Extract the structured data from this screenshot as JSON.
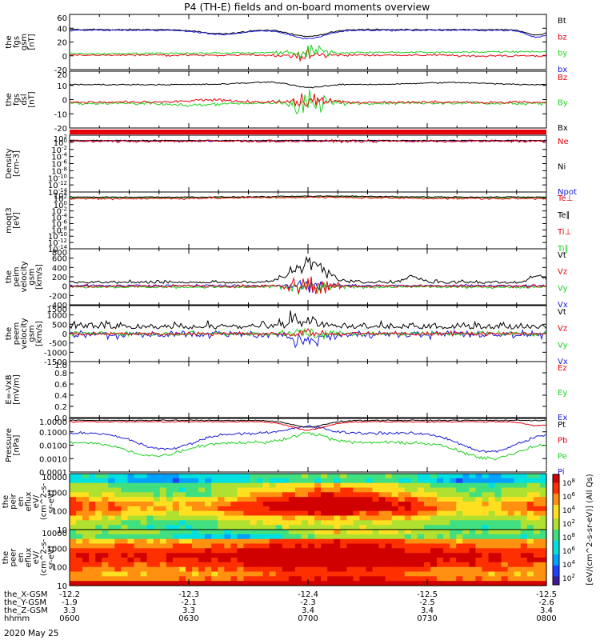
{
  "title": "P4 (TH-E) fields and on-board moments overview",
  "date_label": "2020 May 25",
  "colors": {
    "black": "#000000",
    "red": "#e8000b",
    "green": "#1ed21e",
    "blue": "#1a1ad8"
  },
  "chart_data": [
    {
      "type": "line",
      "panel": "fgs_gsm",
      "ylabel": [
        "the",
        "fgs",
        "gsm",
        "[nT]"
      ],
      "ylim": [
        -20,
        60
      ],
      "yticks": [
        "60",
        "40",
        "20",
        "0",
        "-20"
      ],
      "series": [
        {
          "name": "Bt",
          "color": "black",
          "level": 37
        },
        {
          "name": "bz",
          "color": "red",
          "level": 2
        },
        {
          "name": "by",
          "color": "green",
          "level": 5
        },
        {
          "name": "bx",
          "color": "blue",
          "level": 35
        }
      ]
    },
    {
      "type": "line",
      "panel": "fgs_dsl",
      "ylabel": [
        "the",
        "fgs",
        "dsl",
        "[nT]"
      ],
      "ylim": [
        -25,
        30
      ],
      "yticks": [
        "20",
        "10",
        "0",
        "-10",
        "-20"
      ],
      "series": [
        {
          "name": "Bz",
          "color": "red",
          "level": 0
        },
        {
          "name": "By",
          "color": "green",
          "level": -1
        },
        {
          "name": "Bx",
          "color": "black",
          "level": 17
        }
      ]
    },
    {
      "type": "line",
      "panel": "density",
      "ylabel": [
        "Density",
        "[cm-3]"
      ],
      "ylim": [
        -14,
        2
      ],
      "log": true,
      "yticks": [
        "10^2",
        "10^0",
        "10^-2",
        "10^-4",
        "10^-6",
        "10^-8",
        "10^-10",
        "10^-12",
        "10^-14"
      ],
      "series": [
        {
          "name": "Ne",
          "color": "red",
          "level": 0
        },
        {
          "name": "Ni",
          "color": "black",
          "level": 0
        },
        {
          "name": "Npot",
          "color": "blue",
          "level": 0
        }
      ]
    },
    {
      "type": "line",
      "panel": "temperature",
      "ylabel": [
        "moqt3",
        "[eV]"
      ],
      "ylim": [
        -14,
        4
      ],
      "log": true,
      "yticks": [
        "10^4",
        "10^2",
        "10^0",
        "10^-2",
        "10^-4",
        "10^-6",
        "10^-8",
        "10^-10",
        "10^-12",
        "10^-14"
      ],
      "series": [
        {
          "name": "Te⊥",
          "color": "red",
          "level": 2
        },
        {
          "name": "Te∥",
          "color": "black",
          "level": 2
        },
        {
          "name": "Ti⊥",
          "color": "red",
          "level": 2
        },
        {
          "name": "Ti∥",
          "color": "green",
          "level": 2
        }
      ]
    },
    {
      "type": "line",
      "panel": "peim_velocity",
      "ylabel": [
        "the",
        "peim",
        "velocity",
        "gsm",
        "[km/s]"
      ],
      "ylim": [
        -400,
        800
      ],
      "yticks": [
        "800",
        "600",
        "400",
        "200",
        "0",
        "-200",
        "-400"
      ],
      "series": [
        {
          "name": "Vt",
          "color": "black",
          "level": 60
        },
        {
          "name": "Vz",
          "color": "red",
          "level": 0
        },
        {
          "name": "Vy",
          "color": "green",
          "level": -20
        },
        {
          "name": "Vx",
          "color": "blue",
          "level": 10
        }
      ]
    },
    {
      "type": "line",
      "panel": "peem_velocity",
      "ylabel": [
        "the",
        "peem",
        "velocity",
        "gsm",
        "[km/s]"
      ],
      "ylim": [
        -1500,
        1500
      ],
      "yticks": [
        "1500",
        "1000",
        "500",
        "0",
        "-500",
        "-1000",
        "-1500"
      ],
      "series": [
        {
          "name": "Vt",
          "color": "black",
          "level": 300
        },
        {
          "name": "Vz",
          "color": "red",
          "level": 0
        },
        {
          "name": "Vy",
          "color": "green",
          "level": 0
        },
        {
          "name": "Vx",
          "color": "blue",
          "level": 0
        }
      ]
    },
    {
      "type": "line",
      "panel": "efield",
      "ylabel": [
        "E=-VxB",
        "[mV/m]"
      ],
      "ylim": [
        0,
        1
      ],
      "yticks": [
        "1.0",
        "0.8",
        "0.6",
        "0.4",
        "0.2",
        "0.0"
      ],
      "series": [
        {
          "name": "Ez",
          "color": "red"
        },
        {
          "name": "Ey",
          "color": "green"
        },
        {
          "name": "Ex",
          "color": "blue"
        }
      ]
    },
    {
      "type": "line",
      "panel": "pressure",
      "ylabel": [
        "Pressure",
        "[nPa]"
      ],
      "ylim": [
        -4,
        0
      ],
      "log": true,
      "yticks": [
        "1.0000",
        "0.1000",
        "0.0100",
        "0.0010",
        "0.0001"
      ],
      "series": [
        {
          "name": "Pt",
          "color": "black"
        },
        {
          "name": "Pb",
          "color": "red"
        },
        {
          "name": "Pe",
          "color": "green"
        },
        {
          "name": "Pi",
          "color": "blue"
        }
      ]
    },
    {
      "type": "heatmap",
      "panel": "peir_spectrogram",
      "ylabel": [
        "the",
        "peir",
        "en",
        "eflux",
        "eV/",
        "(cm^2-s-",
        "sr-eV)"
      ],
      "ylim": [
        10,
        20000
      ],
      "log": true,
      "yticks": [
        "10000",
        "1000",
        "100",
        "10"
      ]
    },
    {
      "type": "heatmap",
      "panel": "peer_spectrogram",
      "ylabel": [
        "the",
        "peer",
        "en",
        "eflux",
        "eV/",
        "(cm^2-s-",
        "sr-eV)"
      ],
      "ylim": [
        10,
        20000
      ],
      "log": true,
      "yticks": [
        "10000",
        "1000",
        "100",
        "10"
      ]
    }
  ],
  "colorbar": {
    "label": "[eV/(cm^2-s-sr-eV)] (All Qs)",
    "ticks": [
      "10^8",
      "10^6",
      "10^4",
      "10^2",
      "10^8",
      "10^6",
      "10^4",
      "10^2"
    ]
  },
  "x_axis": {
    "row_labels": [
      "the_X-GSM",
      "the_Y-GSM",
      "the_Z-GSM",
      "hhmm"
    ],
    "ticks": [
      {
        "x": "-12.2",
        "y": "-1.9",
        "z": "3.3",
        "t": "0600"
      },
      {
        "x": "-12.3",
        "y": "-2.1",
        "z": "3.3",
        "t": "0630"
      },
      {
        "x": "-12.4",
        "y": "-2.3",
        "z": "3.4",
        "t": "0700"
      },
      {
        "x": "-12.5",
        "y": "-2.5",
        "z": "3.4",
        "t": "0730"
      },
      {
        "x": "-12.5",
        "y": "-2.6",
        "z": "3.4",
        "t": "0800"
      }
    ]
  }
}
